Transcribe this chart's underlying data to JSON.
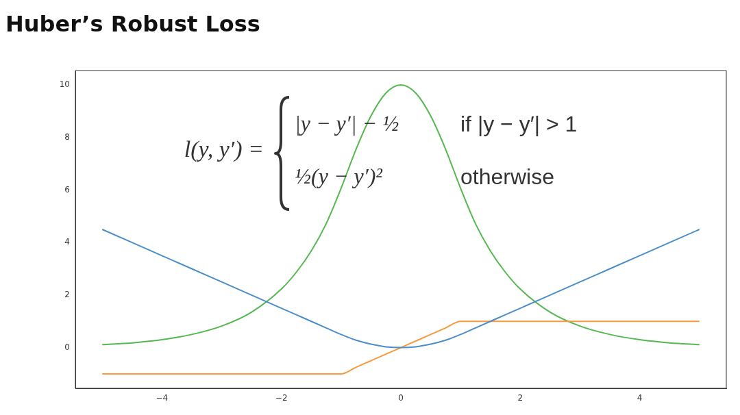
{
  "chart_data": {
    "type": "line",
    "title": "Huber’s Robust Loss",
    "x": [
      -5,
      -4.5,
      -4,
      -3.5,
      -3,
      -2.5,
      -2,
      -1.75,
      -1.5,
      -1.25,
      -1,
      -0.75,
      -0.5,
      -0.25,
      0,
      0.25,
      0.5,
      0.75,
      1,
      1.25,
      1.5,
      1.75,
      2,
      2.5,
      3,
      3.5,
      4,
      4.5,
      5
    ],
    "series": [
      {
        "color": "#4a8dc9",
        "values": [
          4.5,
          4,
          3.5,
          3,
          2.5,
          2,
          1.5,
          1.25,
          1,
          0.75,
          0.5,
          0.28,
          0.13,
          0.03,
          0,
          0.03,
          0.13,
          0.28,
          0.5,
          0.75,
          1,
          1.25,
          1.5,
          2,
          2.5,
          3,
          3.5,
          4,
          4.5
        ]
      },
      {
        "color": "#f7993d",
        "values": [
          -1,
          -1,
          -1,
          -1,
          -1,
          -1,
          -1,
          -1,
          -1,
          -1,
          -1,
          -0.75,
          -0.5,
          -0.25,
          0,
          0.25,
          0.5,
          0.75,
          1,
          1,
          1,
          1,
          1,
          1,
          1,
          1,
          1,
          1,
          1
        ]
      },
      {
        "color": "#55b74f",
        "values": [
          0.11,
          0.18,
          0.3,
          0.5,
          0.82,
          1.35,
          2.23,
          2.87,
          3.68,
          4.72,
          6.07,
          7.55,
          8.82,
          9.69,
          10,
          9.69,
          8.82,
          7.55,
          6.07,
          4.72,
          3.68,
          2.87,
          2.23,
          1.35,
          0.82,
          0.5,
          0.3,
          0.18,
          0.11
        ]
      }
    ],
    "xlim": [
      -5.45,
      5.45
    ],
    "ylim": [
      -1.55,
      10.55
    ],
    "xticks": [
      {
        "value": -4,
        "label": "−4"
      },
      {
        "value": -2,
        "label": "−2"
      },
      0,
      2,
      4
    ],
    "yticks": [
      0,
      2,
      4,
      6,
      8,
      10
    ],
    "annotations": [
      "l(y, y′) =",
      "|y − y′| − ½",
      "if |y − y′| > 1",
      "½(y − y′)²",
      "otherwise"
    ],
    "grid": false,
    "legend": false,
    "marker": "none",
    "line_style": "solid"
  }
}
